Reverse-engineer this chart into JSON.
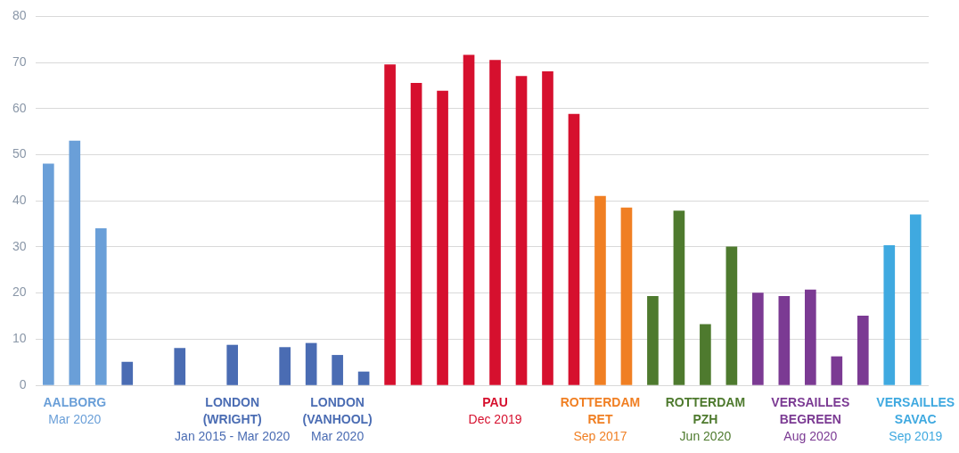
{
  "chart_data": {
    "type": "bar",
    "categories": [
      null,
      "AALBORG\nMar 2020",
      null,
      null,
      null,
      null,
      null,
      "LONDON\n(WRIGHT)\nJan 2015 - Mar 2020",
      null,
      null,
      null,
      "LONDON\n(VANHOOL)\nMar 2020",
      null,
      null,
      null,
      null,
      null,
      "PAU\nDec 2019",
      null,
      null,
      null,
      "ROTTERDAM\nRET\nSep 2017",
      null,
      null,
      null,
      "ROTTERDAM\nPZH\nJun 2020",
      null,
      null,
      null,
      "VERSAILLES\nBEGREEN\nAug 2020",
      null,
      null,
      null,
      "VERSAILLES\nSAVAC\nSep 2019"
    ],
    "values": [
      48,
      53,
      34,
      5,
      null,
      8,
      null,
      8.7,
      null,
      8.2,
      9.1,
      6.5,
      2.9,
      69.5,
      65.5,
      63.8,
      71.6,
      70.5,
      67,
      68,
      58.8,
      41,
      38.5,
      19.3,
      37.8,
      13.2,
      30,
      20,
      19.3,
      20.7,
      6.2,
      15,
      30.3,
      37
    ],
    "colors": [
      "#6a9fd8",
      "#6a9fd8",
      "#6a9fd8",
      "#4a6cb3",
      "#4a6cb3",
      "#4a6cb3",
      "#4a6cb3",
      "#4a6cb3",
      "#4a6cb3",
      "#4a6cb3",
      "#4a6cb3",
      "#4a6cb3",
      "#4a6cb3",
      "#d6102e",
      "#d6102e",
      "#d6102e",
      "#d6102e",
      "#d6102e",
      "#d6102e",
      "#d6102e",
      "#d6102e",
      "#f07f23",
      "#f07f23",
      "#4e7a2e",
      "#4e7a2e",
      "#4e7a2e",
      "#4e7a2e",
      "#7b3a93",
      "#7b3a93",
      "#7b3a93",
      "#7b3a93",
      "#7b3a93",
      "#3fa9e0",
      "#3fa9e0"
    ],
    "ylim": [
      0,
      80
    ],
    "yticks": [
      0,
      10,
      20,
      30,
      40,
      50,
      60,
      70,
      80
    ],
    "grid": "y"
  }
}
